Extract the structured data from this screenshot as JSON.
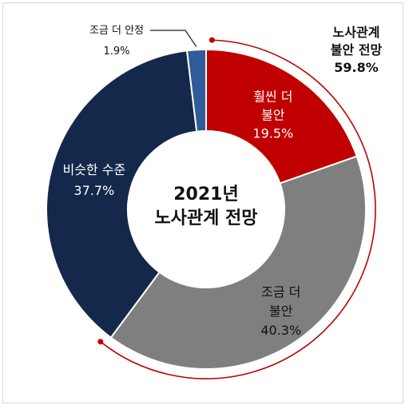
{
  "chart_data": {
    "type": "pie",
    "title": "2021년 노사관계 전망",
    "center_lines": [
      "2021년",
      "노사관계 전망"
    ],
    "slices": [
      {
        "label": "훨씬 더 불안",
        "label_lines": [
          "훨씬 더",
          "불안"
        ],
        "value": 19.5,
        "value_text": "19.5%",
        "color": "#c00000"
      },
      {
        "label": "조금 더 불안",
        "label_lines": [
          "조금 더",
          "불안"
        ],
        "value": 40.3,
        "value_text": "40.3%",
        "color": "#7f7f7f"
      },
      {
        "label": "비슷한 수준",
        "label_lines": [
          "비슷한 수준"
        ],
        "value": 37.7,
        "value_text": "37.7%",
        "color": "#14284b"
      },
      {
        "label": "조금 더 안정",
        "label_lines": [
          "조금 더 안정"
        ],
        "value": 1.9,
        "value_text": "1.9%",
        "color": "#2e5c9a"
      }
    ],
    "annotation": {
      "lines": [
        "노사관계",
        "불안 전망"
      ],
      "value_text": "59.8%",
      "color": "#c00000"
    }
  }
}
